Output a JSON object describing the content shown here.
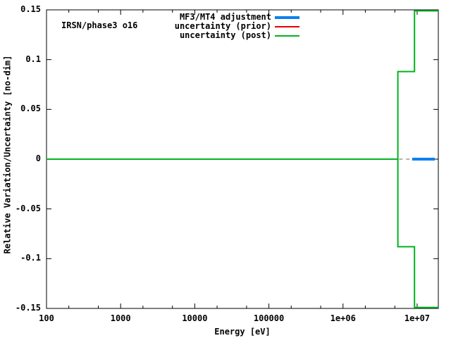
{
  "annotation": "IRSN/phase3 o16",
  "colors": {
    "background": "#ffffff",
    "axis": "#000000",
    "adjustment_blue": "#0c80f0",
    "prior_red": "#e60000",
    "post_green": "#00b41e",
    "overlap_gray": "#b3b3b3"
  },
  "legend": [
    {
      "label": "MF3/MT4 adjustment",
      "color": "#0c80f0",
      "thickness": 4
    },
    {
      "label": "uncertainty (prior)",
      "color": "#e60000",
      "thickness": 2
    },
    {
      "label": "uncertainty (post)",
      "color": "#00b41e",
      "thickness": 2
    }
  ],
  "chart_data": {
    "type": "line",
    "title": "IRSN/phase3 o16",
    "xlabel": "Energy [eV]",
    "ylabel": "Relative Variation/Uncertainty [no-dim]",
    "x_scale": "log",
    "xlim": [
      100,
      19300000
    ],
    "ylim": [
      -0.15,
      0.15
    ],
    "grid": false,
    "legend_position": "top-right-inside",
    "x_ticks": [
      {
        "v": 100,
        "label": "100"
      },
      {
        "v": 1000,
        "label": "1000"
      },
      {
        "v": 10000,
        "label": "10000"
      },
      {
        "v": 100000,
        "label": "100000"
      },
      {
        "v": 1000000,
        "label": "1e+06"
      },
      {
        "v": 10000000,
        "label": "1e+07"
      }
    ],
    "x_minor_ticks": [
      200,
      500,
      2000,
      5000,
      20000,
      50000,
      200000,
      500000,
      2000000,
      5000000
    ],
    "y_ticks": [
      {
        "v": 0.15,
        "label": "0.15"
      },
      {
        "v": 0.1,
        "label": "0.1"
      },
      {
        "v": 0.05,
        "label": "0.05"
      },
      {
        "v": 0,
        "label": "0"
      },
      {
        "v": -0.05,
        "label": "-0.05"
      },
      {
        "v": -0.1,
        "label": "-0.1"
      },
      {
        "v": -0.15,
        "label": "-0.15"
      }
    ],
    "series": [
      {
        "name": "uncertainty (post) upper",
        "color": "#00b41e",
        "width": 2,
        "dash": "",
        "points": [
          [
            100,
            0
          ],
          [
            5500000,
            0
          ],
          [
            5500000,
            0.088
          ],
          [
            9200000,
            0.088
          ],
          [
            9200000,
            0.149
          ],
          [
            19300000,
            0.149
          ]
        ]
      },
      {
        "name": "uncertainty (post) lower",
        "color": "#00b41e",
        "width": 2,
        "dash": "",
        "points": [
          [
            5500000,
            0
          ],
          [
            5500000,
            -0.088
          ],
          [
            9200000,
            -0.088
          ],
          [
            9200000,
            -0.149
          ],
          [
            19300000,
            -0.149
          ]
        ]
      },
      {
        "name": "uncertainty (prior) overlap remnant",
        "color": "#b3b3b3",
        "width": 2,
        "dash": "5,5",
        "points": [
          [
            5700000,
            0
          ],
          [
            8570000,
            0
          ]
        ]
      },
      {
        "name": "MF3/MT4 adjustment",
        "color": "#0c80f0",
        "width": 4,
        "dash": "",
        "points": [
          [
            8570000,
            0
          ],
          [
            17300000,
            0
          ]
        ]
      }
    ]
  }
}
